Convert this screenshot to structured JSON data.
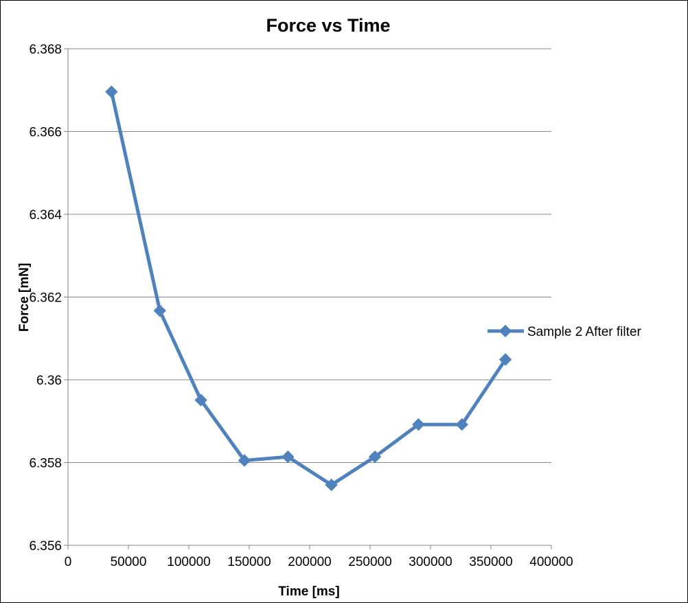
{
  "chart_data": {
    "type": "line",
    "title": "Force vs Time",
    "xlabel": "Time [ms]",
    "ylabel": "Force [mN]",
    "xlim": [
      0,
      400000
    ],
    "ylim": [
      6.356,
      6.368
    ],
    "x_ticks": [
      0,
      50000,
      100000,
      150000,
      200000,
      250000,
      300000,
      350000,
      400000
    ],
    "y_ticks": [
      6.356,
      6.358,
      6.36,
      6.362,
      6.364,
      6.366,
      6.368
    ],
    "x_tick_labels": [
      "0",
      "50000",
      "100000",
      "150000",
      "200000",
      "250000",
      "300000",
      "350000",
      "400000"
    ],
    "y_tick_labels": [
      "6.356",
      "6.358",
      "6.36",
      "6.362",
      "6.364",
      "6.366",
      "6.368"
    ],
    "grid": "horizontal major gridlines",
    "legend_position": "right",
    "series": [
      {
        "name": "Sample 2 After filter",
        "color": "#4f81bd",
        "marker": "diamond",
        "x": [
          36000,
          76000,
          110000,
          146000,
          182000,
          218000,
          254000,
          290000,
          326000,
          362000
        ],
        "y": [
          6.36696,
          6.36167,
          6.35951,
          6.35805,
          6.35814,
          6.35746,
          6.35814,
          6.35892,
          6.35892,
          6.36049
        ]
      }
    ]
  }
}
